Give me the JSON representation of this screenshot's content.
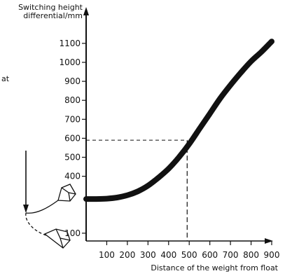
{
  "chart_data": {
    "type": "line",
    "ylabel_lines": [
      "Switching height",
      "differential/mm"
    ],
    "xlabel": "Distance of the weight from float",
    "x_ticks": [
      100,
      200,
      300,
      400,
      500,
      600,
      700,
      800,
      900
    ],
    "y_ticks": [
      100,
      400,
      500,
      600,
      700,
      800,
      900,
      1000,
      1100
    ],
    "xlim": [
      0,
      900
    ],
    "ylim": [
      0,
      1200
    ],
    "series": [
      {
        "x": [
          0,
          50,
          100,
          150,
          200,
          250,
          300,
          350,
          400,
          450,
          500,
          550,
          600,
          650,
          700,
          750,
          800,
          850,
          900
        ],
        "y": [
          280,
          280,
          282,
          288,
          300,
          320,
          350,
          392,
          440,
          500,
          570,
          650,
          730,
          810,
          880,
          945,
          1005,
          1055,
          1110
        ]
      }
    ],
    "reference": {
      "x": 490,
      "y": 590
    },
    "side_label_fragment": "at",
    "line_color": "#111111"
  }
}
